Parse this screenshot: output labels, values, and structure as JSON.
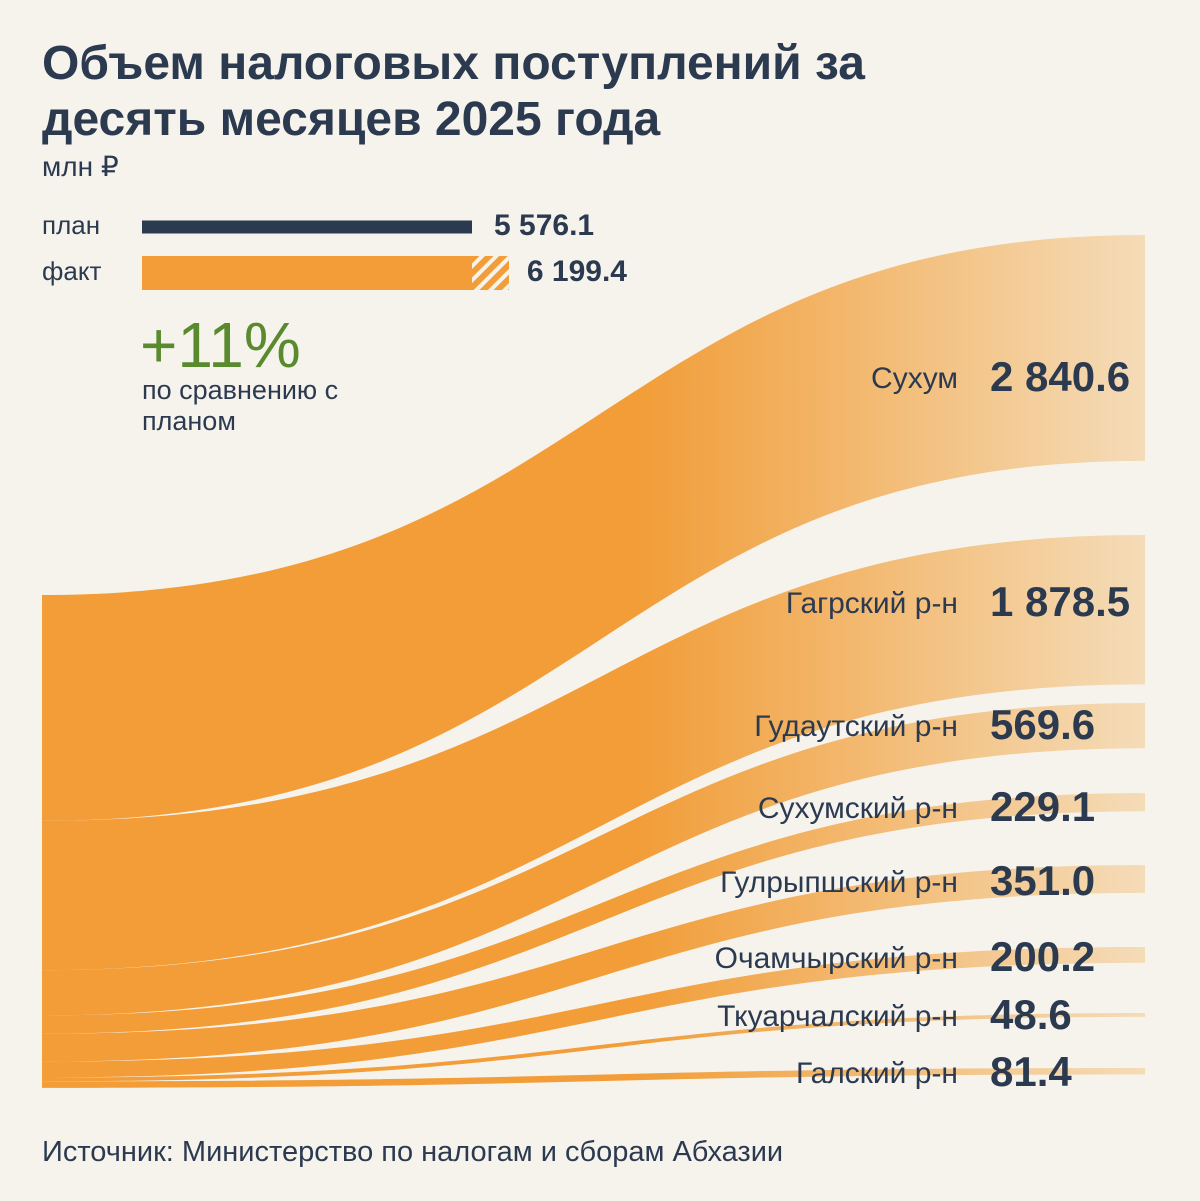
{
  "title": "Объем налоговых поступлений за десять месяцев 2025 года",
  "subtitle": "млн ₽",
  "annotation": {
    "value": "+11%",
    "text": "по сравнению с планом"
  },
  "source": "Источник: Министерство по налогам и сборам Абхазии",
  "chart_data": [
    {
      "type": "bar",
      "orientation": "horizontal",
      "categories": [
        "план",
        "факт"
      ],
      "values": [
        5576.1,
        6199.4
      ],
      "value_labels": [
        "5 576.1",
        "6 199.4"
      ],
      "colors": [
        "#2c3a50",
        "#f29d38"
      ]
    },
    {
      "type": "sankey",
      "categories": [
        "Сухум",
        "Гагрский р-н",
        "Гудаутский р-н",
        "Сухумский р-н",
        "Гулрыпшский р-н",
        "Очамчырский р-н",
        "Ткуарчалский р-н",
        "Галский р-н"
      ],
      "values": [
        2840.6,
        1878.5,
        569.6,
        229.1,
        351.0,
        200.2,
        48.6,
        81.4
      ],
      "value_labels": [
        "2 840.6",
        "1 878.5",
        "569.6",
        "229.1",
        "351.0",
        "200.2",
        "48.6",
        "81.4"
      ],
      "color": "#f29d38"
    }
  ]
}
